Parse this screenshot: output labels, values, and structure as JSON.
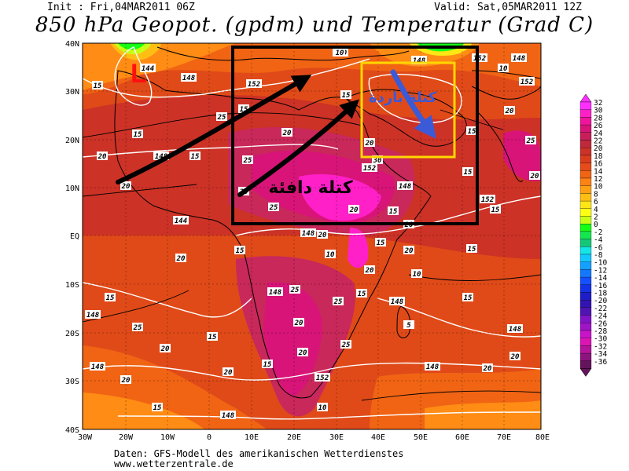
{
  "header": {
    "init": "Init : Fri,04MAR2011 06Z",
    "valid": "Valid: Sat,05MAR2011 12Z",
    "title": "850 hPa Geopot. (gpdm) und Temperatur (Grad C)"
  },
  "map": {
    "region": "Africa",
    "lat_labels": [
      "40N",
      "30N",
      "20N",
      "10N",
      "EQ",
      "10S",
      "20S",
      "30S",
      "40S"
    ],
    "lon_labels": [
      "30W",
      "20W",
      "10W",
      "0",
      "10E",
      "20E",
      "30E",
      "40E",
      "50E",
      "60E",
      "70E",
      "80E"
    ],
    "low_marker": "L",
    "annotation_warm": "كتلة دافئة",
    "annotation_cold": "كتلة باردة",
    "colors": {
      "hot_core": "#ff20c0",
      "very_warm": "#c81e5a",
      "warm": "#dc3c1e",
      "mild": "#f06414",
      "orange": "#ff8c14",
      "yellow": "#ffd700",
      "green": "#22dd22",
      "annotation_box": "#000000",
      "cold_box": "#ffd700",
      "arrow_blue": "#3a5ad8"
    },
    "geopotential_labels": [
      "144",
      "148",
      "152",
      "140",
      "148",
      "152",
      "148",
      "152",
      "148",
      "152",
      "148",
      "152",
      "144",
      "148",
      "148",
      "148",
      "148",
      "148",
      "148",
      "148",
      "152",
      "148"
    ],
    "temperature_labels": [
      "15",
      "20",
      "15",
      "20",
      "25",
      "15",
      "10",
      "15",
      "20",
      "25",
      "30",
      "20",
      "15",
      "20",
      "25",
      "20",
      "15",
      "10",
      "15",
      "20",
      "15",
      "20",
      "25",
      "20",
      "15",
      "20",
      "10",
      "15",
      "20",
      "20",
      "15",
      "20",
      "25",
      "20",
      "25",
      "15",
      "20",
      "15",
      "10",
      "5",
      "15",
      "20",
      "15",
      "20",
      "25",
      "15",
      "20",
      "15",
      "20",
      "10",
      "15",
      "20",
      "25"
    ]
  },
  "colorbar": {
    "levels": [
      32,
      30,
      28,
      26,
      24,
      22,
      20,
      18,
      16,
      14,
      12,
      10,
      8,
      6,
      4,
      2,
      0,
      -2,
      -4,
      -6,
      -8,
      -10,
      -12,
      -14,
      -16,
      -18,
      -20,
      -22,
      -24,
      -26,
      -28,
      -30,
      -32,
      -34,
      -36
    ],
    "colors": [
      "#ff30ff",
      "#ff20c8",
      "#f0149c",
      "#d81478",
      "#c81e5a",
      "#c0283c",
      "#cc3228",
      "#dc3c1e",
      "#e64b19",
      "#f06414",
      "#ff8214",
      "#ffa014",
      "#ffbe14",
      "#ffe614",
      "#ffff14",
      "#c8ff14",
      "#14ff14",
      "#14e650",
      "#14c878",
      "#14e6e6",
      "#14c8ff",
      "#14a0ff",
      "#1478ff",
      "#1450ff",
      "#1432e6",
      "#1e1ec8",
      "#3214b4",
      "#5014b4",
      "#8214c8",
      "#a014c8",
      "#c814c8",
      "#dc14b4",
      "#b4149b",
      "#8c147d",
      "#64145a"
    ]
  },
  "footer": {
    "credit_line1": "Daten: GFS-Modell des amerikanischen Wetterdienstes",
    "credit_line2": "www.wetterzentrale.de"
  }
}
